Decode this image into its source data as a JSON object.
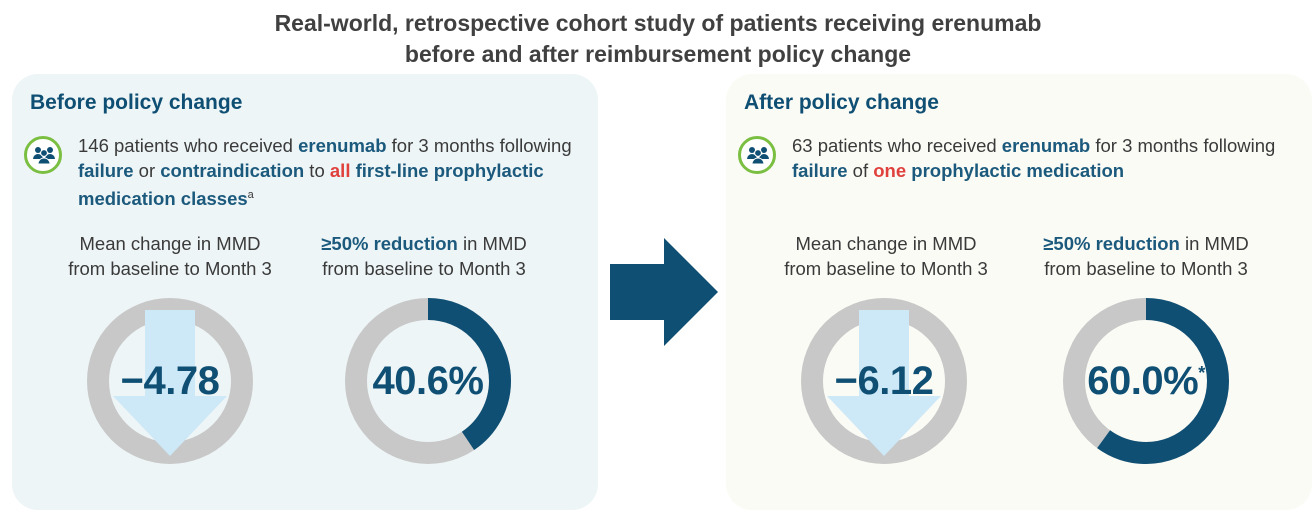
{
  "title": {
    "line1": "Real-world, retrospective cohort study of patients receiving erenumab",
    "line2": "before and after reimbursement policy change"
  },
  "colors": {
    "navy": "#0f4f73",
    "ring_gray": "#c8c8c8",
    "down_arrow": "#cde8f6",
    "highlight_red": "#e0413c",
    "icon_green": "#7bbf42"
  },
  "icons": {
    "patients": "people-group-icon",
    "transition": "right-arrow-icon",
    "decrease": "down-arrow-icon"
  },
  "before": {
    "heading": "Before policy change",
    "desc": {
      "t1": "146 patients who received ",
      "b1": "erenumab",
      "t2": " for 3 months following ",
      "b2": "failure",
      "t3": " or ",
      "b3": "contraindication",
      "t4": " to ",
      "r1": "all",
      "t5": " ",
      "b4": "first-line prophylactic medication classes",
      "sup": "a"
    }
  },
  "after": {
    "heading": "After policy change",
    "desc": {
      "t1": "63 patients who received ",
      "b1": "erenumab",
      "t2": " for 3 months following ",
      "b2": "failure",
      "t3": " of ",
      "r1": "one",
      "t4": " ",
      "b3": "prophylactic medication"
    }
  },
  "labels": {
    "mean_line1": "Mean change in MMD",
    "mean_line2": "from baseline to Month 3",
    "red_bold": "≥50% reduction",
    "red_rest": " in MMD",
    "red_line2": "from baseline to Month 3"
  },
  "chart_data": [
    {
      "type": "pie",
      "panel": "Before policy change",
      "metric": "Mean change in MMD from baseline to Month 3",
      "display": "−4.78",
      "value": -4.78
    },
    {
      "type": "pie",
      "panel": "Before policy change",
      "metric": "≥50% reduction in MMD from baseline to Month 3",
      "display": "40.6%",
      "value": 40.6,
      "footnote": ""
    },
    {
      "type": "pie",
      "panel": "After policy change",
      "metric": "Mean change in MMD from baseline to Month 3",
      "display": "−6.12",
      "value": -6.12
    },
    {
      "type": "pie",
      "panel": "After policy change",
      "metric": "≥50% reduction in MMD from baseline to Month 3",
      "display": "60.0%",
      "value": 60.0,
      "footnote": "*"
    }
  ]
}
